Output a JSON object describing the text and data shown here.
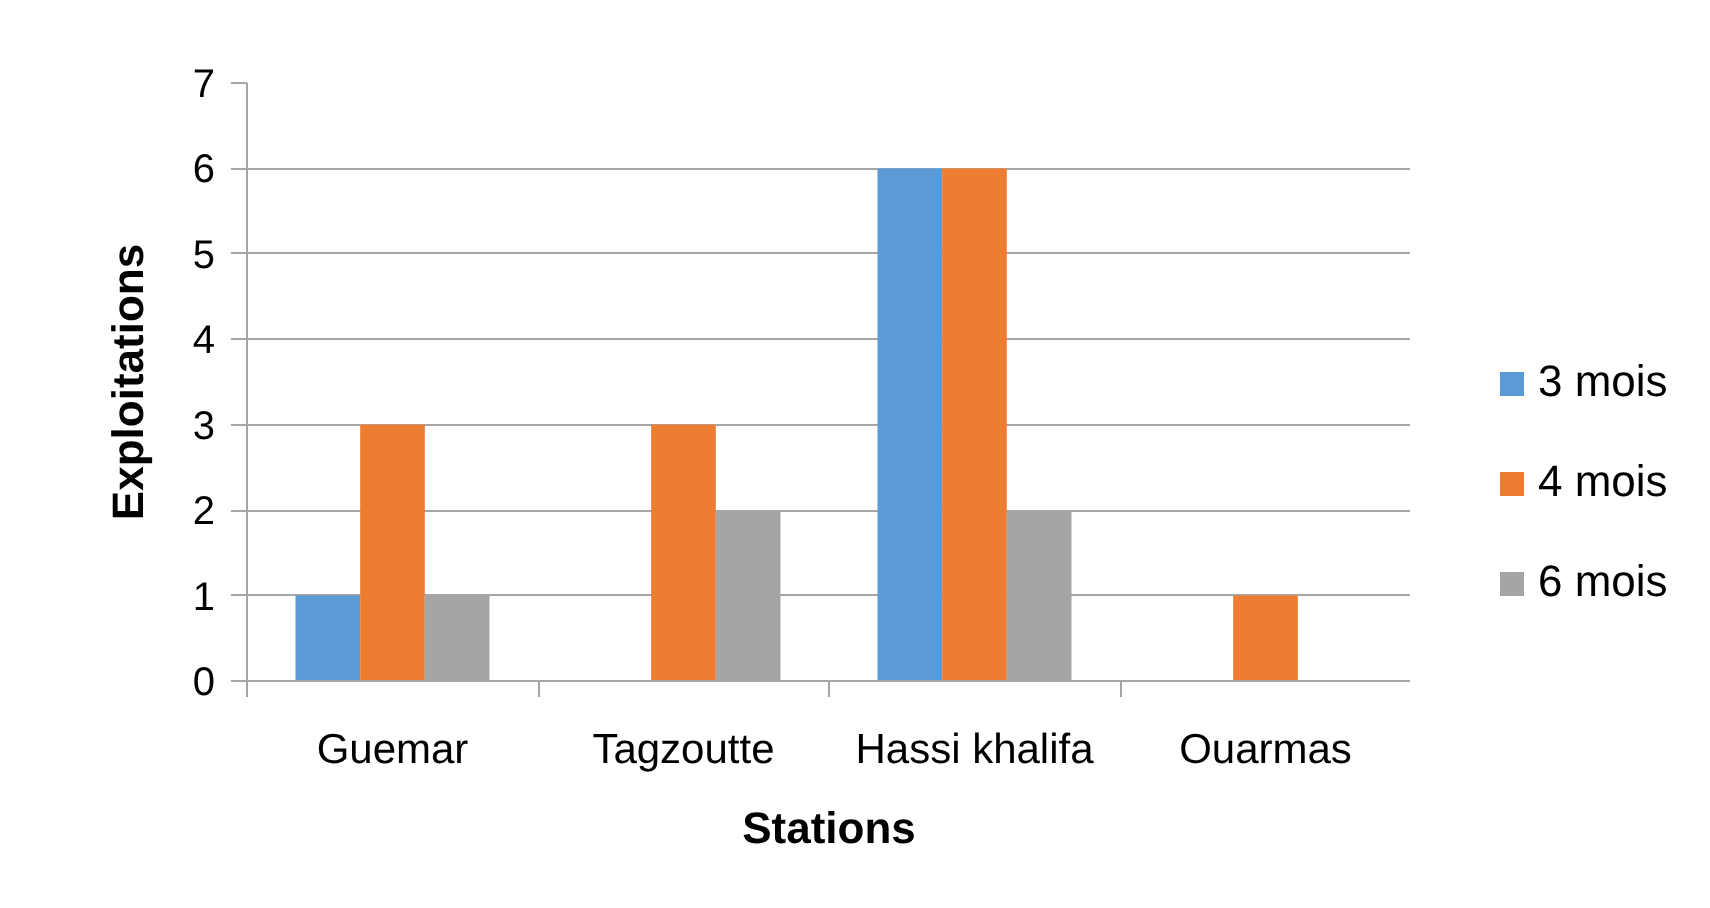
{
  "chart_data": {
    "type": "bar",
    "xlabel": "Stations",
    "ylabel": "Exploitations",
    "categories": [
      "Guemar",
      "Tagzoutte",
      "Hassi khalifa",
      "Ouarmas"
    ],
    "series": [
      {
        "name": "3 mois",
        "color": "#5b9bd5",
        "values": [
          1,
          null,
          6,
          null
        ]
      },
      {
        "name": "4 mois",
        "color": "#ed7d31",
        "values": [
          3,
          3,
          6,
          1
        ]
      },
      {
        "name": "6 mois",
        "color": "#a5a5a5",
        "values": [
          1,
          2,
          2,
          null
        ]
      }
    ],
    "ylim": [
      0,
      7
    ],
    "yticks": [
      0,
      1,
      2,
      3,
      4,
      5,
      6,
      7
    ],
    "grid": "y",
    "legend": "right"
  }
}
